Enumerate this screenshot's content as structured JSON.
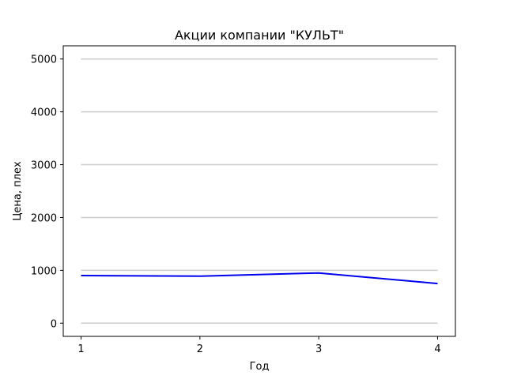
{
  "chart_data": {
    "type": "line",
    "title": "Акции компании \"КУЛЬТ\"",
    "xlabel": "Год",
    "ylabel": "Цена, плех",
    "x": [
      1,
      2,
      3,
      4
    ],
    "series": [
      {
        "values": [
          900,
          890,
          950,
          750
        ]
      }
    ],
    "xticks": [
      1,
      2,
      3,
      4
    ],
    "yticks": [
      0,
      1000,
      2000,
      3000,
      4000,
      5000
    ],
    "xlim": [
      0.85,
      4.15
    ],
    "ylim": [
      -250,
      5250
    ],
    "grid": "horizontal",
    "line_color": "#0000ee",
    "grid_color": "#cccccc"
  }
}
